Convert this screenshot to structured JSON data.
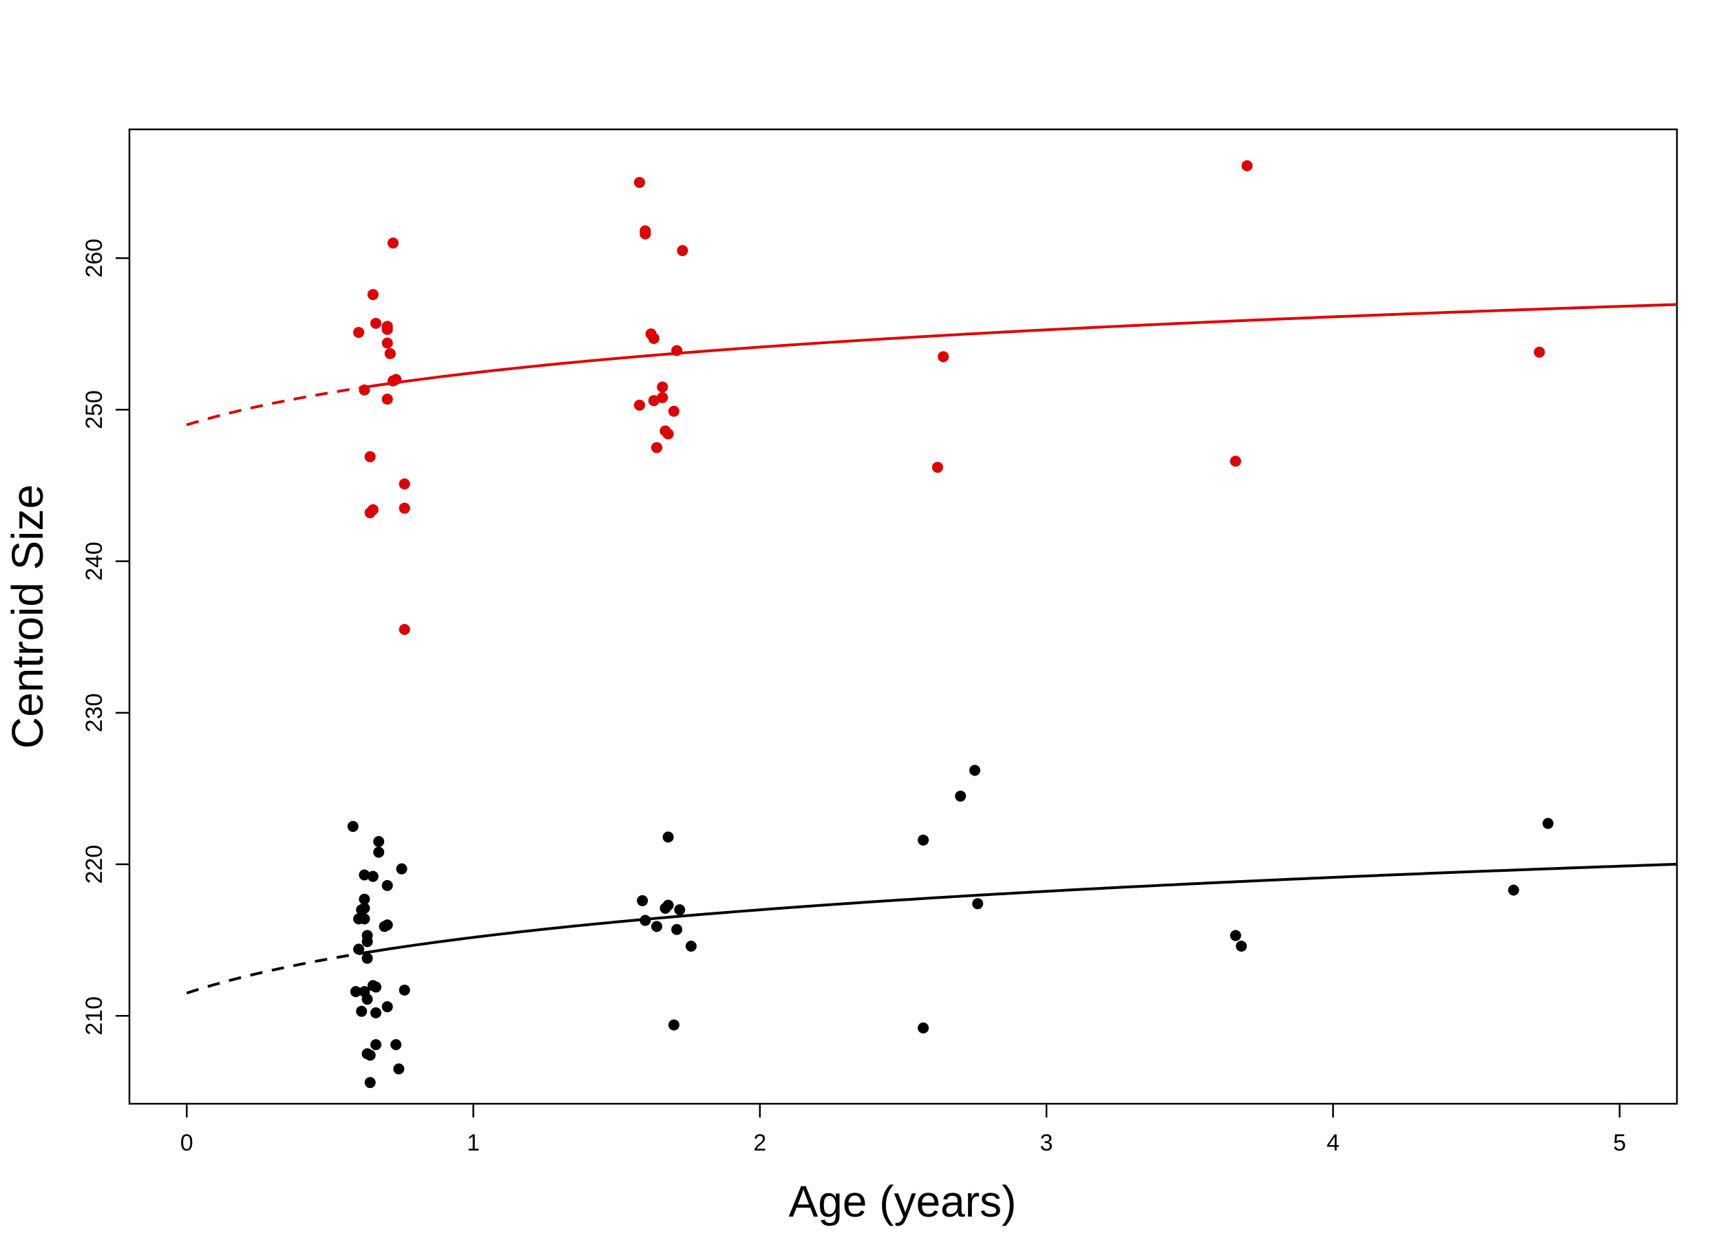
{
  "chart_data": {
    "type": "scatter",
    "title": "",
    "xlabel": "Age (years)",
    "ylabel": "Centroid Size",
    "xlim": [
      -0.2,
      5.2
    ],
    "ylim": [
      204.2,
      268.5
    ],
    "x_ticks": [
      0,
      1,
      2,
      3,
      4,
      5
    ],
    "y_ticks": [
      210,
      220,
      230,
      240,
      250,
      260
    ],
    "grid": false,
    "legend": "none",
    "series": [
      {
        "color": "#e00000",
        "points": [
          [
            0.6,
            255.1
          ],
          [
            0.62,
            251.3
          ],
          [
            0.64,
            246.9
          ],
          [
            0.65,
            257.6
          ],
          [
            0.66,
            255.7
          ],
          [
            0.7,
            255.5
          ],
          [
            0.7,
            255.3
          ],
          [
            0.7,
            254.4
          ],
          [
            0.7,
            250.7
          ],
          [
            0.71,
            253.7
          ],
          [
            0.72,
            251.9
          ],
          [
            0.73,
            252.0
          ],
          [
            0.72,
            261.0
          ],
          [
            0.64,
            243.2
          ],
          [
            0.65,
            243.4
          ],
          [
            0.76,
            235.5
          ],
          [
            0.76,
            245.1
          ],
          [
            0.76,
            243.5
          ],
          [
            1.58,
            265.0
          ],
          [
            1.6,
            261.8
          ],
          [
            1.6,
            261.6
          ],
          [
            1.58,
            250.3
          ],
          [
            1.62,
            255.0
          ],
          [
            1.63,
            254.7
          ],
          [
            1.63,
            250.6
          ],
          [
            1.64,
            247.5
          ],
          [
            1.66,
            251.5
          ],
          [
            1.66,
            250.8
          ],
          [
            1.67,
            248.6
          ],
          [
            1.68,
            248.4
          ],
          [
            1.7,
            249.9
          ],
          [
            1.71,
            253.9
          ],
          [
            1.73,
            260.5
          ],
          [
            2.62,
            246.2
          ],
          [
            2.64,
            253.5
          ],
          [
            3.66,
            246.6
          ],
          [
            3.7,
            266.1
          ],
          [
            4.72,
            253.8
          ]
        ],
        "curve": {
          "a": 249.0,
          "b": 3.5,
          "c": 0.6,
          "x_start": 0,
          "x_solid_from": 0.62,
          "x_end": 5.2
        }
      },
      {
        "color": "#000000",
        "points": [
          [
            0.58,
            222.5
          ],
          [
            0.59,
            211.6
          ],
          [
            0.6,
            214.4
          ],
          [
            0.6,
            216.4
          ],
          [
            0.61,
            217.0
          ],
          [
            0.61,
            210.3
          ],
          [
            0.62,
            219.3
          ],
          [
            0.62,
            217.7
          ],
          [
            0.62,
            217.1
          ],
          [
            0.62,
            216.4
          ],
          [
            0.62,
            211.6
          ],
          [
            0.63,
            215.3
          ],
          [
            0.63,
            214.9
          ],
          [
            0.63,
            213.8
          ],
          [
            0.63,
            211.1
          ],
          [
            0.63,
            207.5
          ],
          [
            0.64,
            207.4
          ],
          [
            0.64,
            205.6
          ],
          [
            0.65,
            219.2
          ],
          [
            0.65,
            212.0
          ],
          [
            0.66,
            210.2
          ],
          [
            0.66,
            211.9
          ],
          [
            0.66,
            208.1
          ],
          [
            0.67,
            221.5
          ],
          [
            0.67,
            220.8
          ],
          [
            0.69,
            215.9
          ],
          [
            0.7,
            218.6
          ],
          [
            0.7,
            216.0
          ],
          [
            0.7,
            210.6
          ],
          [
            0.73,
            208.1
          ],
          [
            0.74,
            206.5
          ],
          [
            0.75,
            219.7
          ],
          [
            0.76,
            211.7
          ],
          [
            1.59,
            217.6
          ],
          [
            1.6,
            216.3
          ],
          [
            1.64,
            215.9
          ],
          [
            1.67,
            217.1
          ],
          [
            1.68,
            217.3
          ],
          [
            1.68,
            221.8
          ],
          [
            1.7,
            209.4
          ],
          [
            1.71,
            215.7
          ],
          [
            1.72,
            217.0
          ],
          [
            1.76,
            214.6
          ],
          [
            2.57,
            221.6
          ],
          [
            2.57,
            209.2
          ],
          [
            2.7,
            224.5
          ],
          [
            2.75,
            226.2
          ],
          [
            2.76,
            217.4
          ],
          [
            3.66,
            215.3
          ],
          [
            3.68,
            214.6
          ],
          [
            4.63,
            218.3
          ],
          [
            4.75,
            222.7
          ]
        ],
        "curve": {
          "a": 211.5,
          "b": 3.75,
          "c": 0.6,
          "x_start": 0,
          "x_solid_from": 0.62,
          "x_end": 5.2
        }
      }
    ]
  }
}
